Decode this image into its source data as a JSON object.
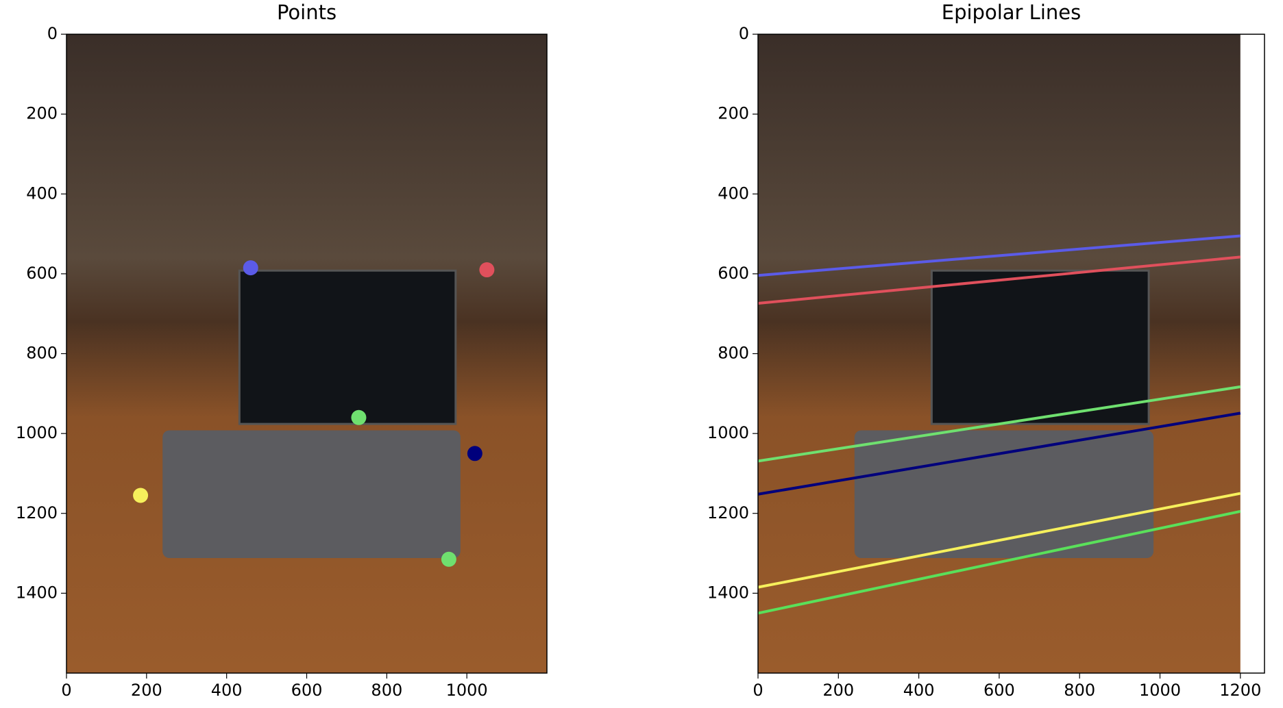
{
  "chart_data": [
    {
      "type": "scatter",
      "title": "Points",
      "x": [
        460,
        1050,
        730,
        1020,
        185,
        955
      ],
      "values": [
        585,
        590,
        960,
        1050,
        1155,
        1315
      ],
      "colors": [
        "#5b5be8",
        "#e0505c",
        "#6fe06f",
        "#00007c",
        "#f6f05c",
        "#6fe06f"
      ],
      "xlim": [
        0,
        1200
      ],
      "ylim": [
        1600,
        0
      ],
      "xticks": [
        0,
        200,
        400,
        600,
        800,
        1000
      ],
      "yticks": [
        0,
        200,
        400,
        600,
        800,
        1000,
        1200,
        1400
      ],
      "grid": false
    },
    {
      "type": "line",
      "title": "Epipolar Lines",
      "x": [
        0,
        1200
      ],
      "series": [
        {
          "color": "#5b5be8",
          "values": [
            604,
            505
          ]
        },
        {
          "color": "#e0505c",
          "values": [
            674,
            558
          ]
        },
        {
          "color": "#6fe06f",
          "values": [
            1069,
            883
          ]
        },
        {
          "color": "#00007c",
          "values": [
            1152,
            949
          ]
        },
        {
          "color": "#f6f05c",
          "values": [
            1385,
            1150
          ]
        },
        {
          "color": "#5ae05a",
          "values": [
            1450,
            1195
          ]
        }
      ],
      "xlim": [
        0,
        1260
      ],
      "ylim": [
        1600,
        0
      ],
      "xticks": [
        0,
        200,
        400,
        600,
        800,
        1000,
        1200
      ],
      "yticks": [
        0,
        200,
        400,
        600,
        800,
        1000,
        1200,
        1400
      ],
      "grid": false
    }
  ]
}
